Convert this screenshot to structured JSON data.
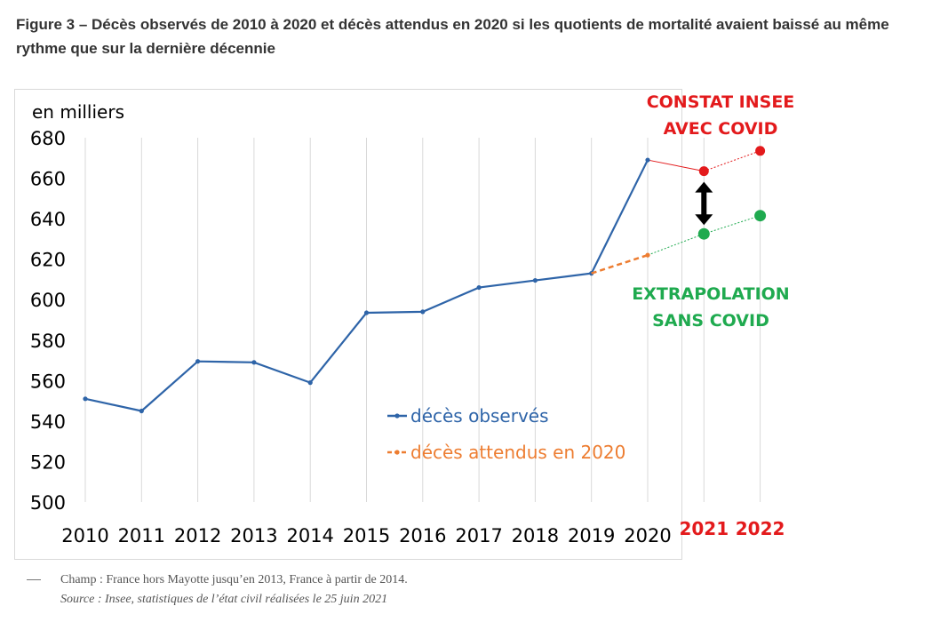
{
  "figure": {
    "title": "Figure 3 – Décès observés de 2010 à 2020 et décès attendus en 2020 si les quotients de mortalité avaient baissé au même rythme que sur la dernière décennie"
  },
  "notes": {
    "champ": "Champ : France hors Mayotte jusqu’en 2013, France à partir de 2014.",
    "source": "Source : Insee, statistiques de l’état civil réalisées le 25 juin 2021"
  },
  "chart_data": {
    "type": "line",
    "ylabel": "en milliers",
    "xlabel": "",
    "ylim": [
      500,
      680
    ],
    "yticks": [
      500,
      520,
      540,
      560,
      580,
      600,
      620,
      640,
      660,
      680
    ],
    "categories": [
      "2010",
      "2011",
      "2012",
      "2013",
      "2014",
      "2015",
      "2016",
      "2017",
      "2018",
      "2019",
      "2020",
      "2021",
      "2022"
    ],
    "grid": "vertical",
    "series": [
      {
        "name": "décès observés",
        "color": "#2e64a8",
        "x": [
          "2010",
          "2011",
          "2012",
          "2013",
          "2014",
          "2015",
          "2016",
          "2017",
          "2018",
          "2019",
          "2020"
        ],
        "values": [
          551,
          545,
          569.5,
          569,
          559,
          593.5,
          594,
          606,
          609.5,
          613,
          669
        ]
      },
      {
        "name": "décès attendus en 2020",
        "color": "#ed7d31",
        "style": "dashed",
        "x": [
          "2019",
          "2020"
        ],
        "values": [
          613,
          622
        ]
      }
    ],
    "annotations": [
      {
        "id": "constat",
        "lines": [
          "CONSTAT INSEE",
          "AVEC COVID"
        ],
        "color": "#e31a1c",
        "points": [
          {
            "x": "2020",
            "y": 669
          },
          {
            "x": "2021",
            "y": 663.5
          },
          {
            "x": "2022",
            "y": 673.5
          }
        ]
      },
      {
        "id": "extrapolation",
        "lines": [
          "EXTRAPOLATION",
          "SANS COVID"
        ],
        "color": "#1faa4f",
        "points": [
          {
            "x": "2020",
            "y": 622
          },
          {
            "x": "2021",
            "y": 632.5
          },
          {
            "x": "2022",
            "y": 641.5
          }
        ]
      }
    ],
    "extra_x_labels": [
      "2021",
      "2022"
    ],
    "extra_x_label_color": "#e31a1c",
    "gap_arrow": {
      "x": "2021",
      "from": 663.5,
      "to": 632.5,
      "color": "#000000"
    },
    "legend_position": "center"
  }
}
